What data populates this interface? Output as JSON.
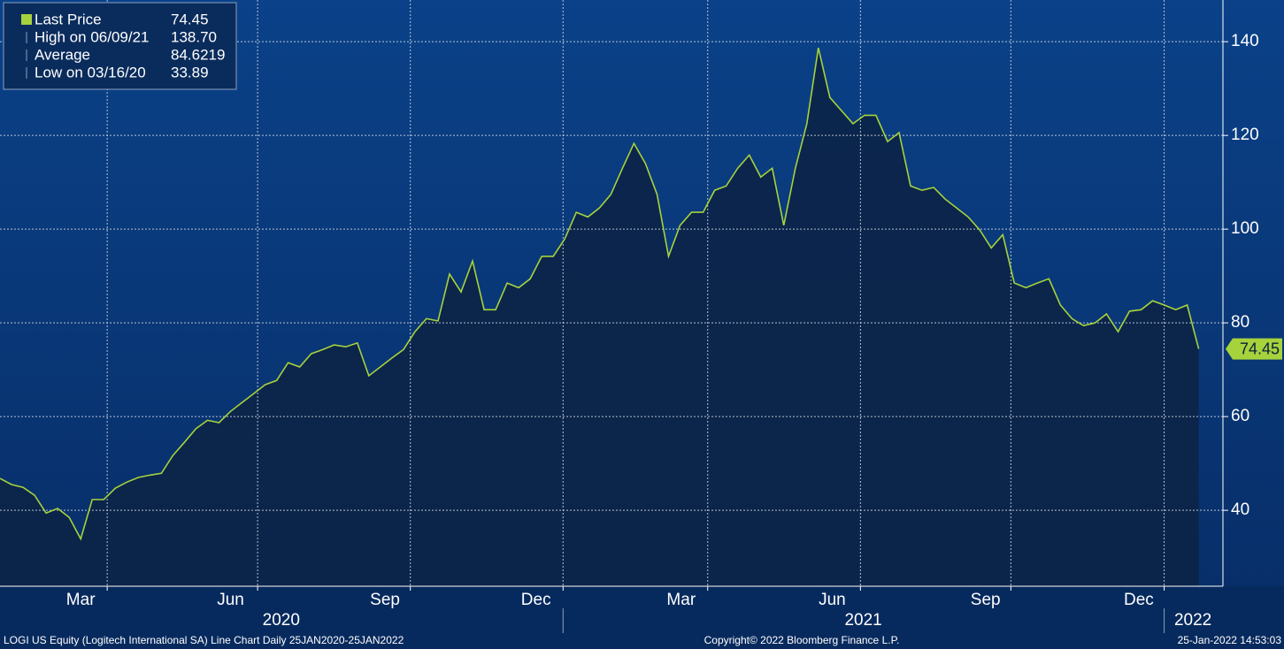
{
  "chart_data": {
    "type": "line",
    "legend": [
      {
        "label": "Last Price",
        "value": "74.45"
      },
      {
        "label": "High on 06/09/21",
        "value": "138.70"
      },
      {
        "label": "Average",
        "value": "84.6219"
      },
      {
        "label": "Low on 03/16/20",
        "value": "33.89"
      }
    ],
    "last_label": "74.45",
    "x": [
      0,
      1,
      2,
      3,
      4,
      5,
      6,
      7,
      8,
      9,
      10,
      11,
      12,
      13,
      14,
      15,
      16,
      17,
      18,
      19,
      20,
      21,
      22,
      23,
      24,
      25,
      26,
      27,
      28,
      29,
      30,
      31,
      32,
      33,
      34,
      35,
      36,
      37,
      38,
      39,
      40,
      41,
      42,
      43,
      44,
      45,
      46,
      47,
      48,
      49,
      50,
      51,
      52,
      53,
      54,
      55,
      56,
      57,
      58,
      59,
      60,
      61,
      62,
      63,
      64,
      65,
      66,
      67,
      68,
      69,
      70,
      71,
      72,
      73,
      74,
      75,
      76,
      77,
      78,
      79,
      80,
      81,
      82,
      83,
      84,
      85,
      86,
      87,
      88,
      89,
      90,
      91,
      92,
      93,
      94,
      95,
      96,
      97,
      98,
      99,
      100,
      101,
      102,
      103,
      104
    ],
    "series": [
      {
        "name": "Last Price",
        "color": "#a6d23c",
        "values": [
          46.8,
          45.5,
          44.9,
          43.2,
          39.4,
          40.4,
          38.5,
          33.89,
          42.3,
          42.3,
          44.7,
          46,
          47,
          47.5,
          47.9,
          51.7,
          54.5,
          57.4,
          59.2,
          58.7,
          61.1,
          63,
          64.9,
          66.8,
          67.7,
          71.5,
          70.6,
          73.4,
          74.3,
          75.3,
          74.9,
          75.7,
          68.7,
          70.6,
          72.5,
          74.3,
          78.1,
          80.9,
          80.4,
          90.4,
          86.6,
          93.2,
          82.8,
          82.8,
          88.5,
          87.5,
          89.4,
          94.2,
          94.2,
          97.9,
          103.6,
          102.6,
          104.5,
          107.4,
          113,
          118.3,
          114,
          107.4,
          94.2,
          100.8,
          103.6,
          103.6,
          108.3,
          109.2,
          113,
          115.8,
          111.1,
          113,
          100.8,
          113,
          122.5,
          138.7,
          128.1,
          125.3,
          122.5,
          124.3,
          124.3,
          118.7,
          120.6,
          109.2,
          108.3,
          108.9,
          106.4,
          104.5,
          102.6,
          99.8,
          96,
          98.8,
          88.5,
          87.5,
          88.5,
          89.4,
          83.8,
          80.9,
          79.4,
          80,
          81.9,
          78.1,
          82.5,
          82.8,
          84.7,
          83.8,
          82.8,
          83.8,
          74.45
        ]
      }
    ],
    "xlim": [
      0,
      106.1
    ],
    "xticks": [
      {
        "value": 7,
        "label": "Mar"
      },
      {
        "value": 20,
        "label": "Jun"
      },
      {
        "value": 33.4,
        "label": "Sep"
      },
      {
        "value": 46.5,
        "label": "Dec"
      },
      {
        "value": 59.1,
        "label": "Mar"
      },
      {
        "value": 72.2,
        "label": "Jun"
      },
      {
        "value": 85.5,
        "label": "Sep"
      },
      {
        "value": 98.8,
        "label": "Dec"
      }
    ],
    "xgrid": [
      9.3,
      22.35,
      35.6,
      48.85,
      61.4,
      74.65,
      87.7,
      101
    ],
    "years": [
      {
        "value": 24.4,
        "label": "2020"
      },
      {
        "value": 74.9,
        "label": "2021"
      },
      {
        "value": 103.5,
        "label": "2022"
      }
    ],
    "year_breaks": [
      48.85,
      101
    ],
    "ylim": [
      23.8,
      148.9
    ],
    "yticks": [
      40,
      60,
      80,
      100,
      120,
      140
    ],
    "grid": true,
    "footer_left": "LOGI US Equity (Logitech International SA) Line Chart  Daily 25JAN2020-25JAN2022",
    "footer_center": "Copyright© 2022 Bloomberg Finance L.P.",
    "footer_right": "25-Jan-2022 14:53:03"
  }
}
